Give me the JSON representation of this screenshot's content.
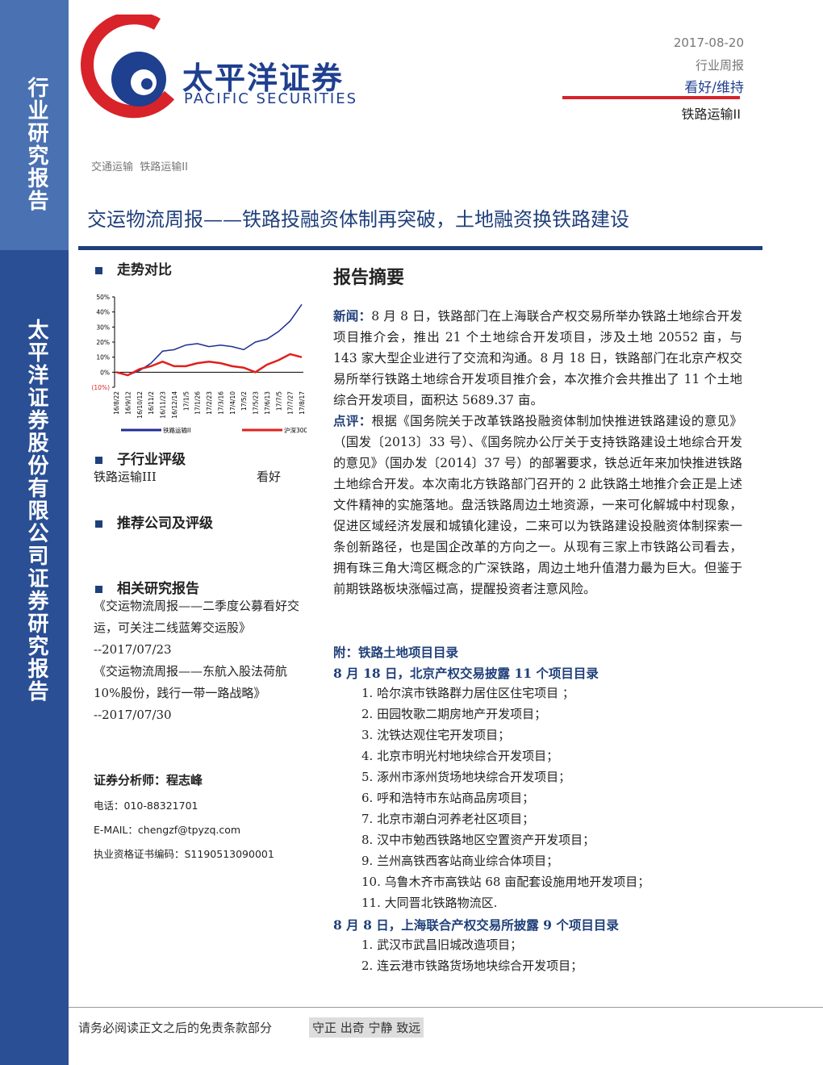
{
  "sidebar": {
    "top": "行业研究报告",
    "bottom": "太平洋证券股份有限公司证券研究报告"
  },
  "header": {
    "logo_cn": "太平洋证券",
    "logo_en": "PACIFIC SECURITIES",
    "date": "2017-08-20",
    "report_type": "行业周报",
    "rating": "看好/维持",
    "industry": "铁路运输II"
  },
  "breadcrumb": "交通运输  铁路运输II",
  "title": "交运物流周报——铁路投融资体制再突破，土地融资换铁路建设",
  "left": {
    "trend_heading": "走势对比",
    "sub_heading": "子行业评级",
    "sub_rating": {
      "industry": "铁路运输III",
      "rating": "看好"
    },
    "recommend_heading": "推荐公司及评级",
    "related_heading": "相关研究报告",
    "related": [
      {
        "title": "《交运物流周报——二季度公募看好交运，可关注二线蓝筹交运股》",
        "date": "--2017/07/23"
      },
      {
        "title": "《交运物流周报——东航入股法荷航 10%股份，践行一带一路战略》",
        "date": "--2017/07/30"
      }
    ],
    "analyst": {
      "label": "证券分析师：程志峰",
      "phone": "电话：010-88321701",
      "email": "E-MAIL：chengzf@tpyzq.com",
      "cert": "执业资格证书编码：S1190513090001"
    }
  },
  "summary": {
    "heading": "报告摘要",
    "news_label": "新闻：",
    "news": "8 月 8 日，铁路部门在上海联合产权交易所举办铁路土地综合开发项目推介会，推出 21 个土地综合开发项目，涉及土地 20552 亩，与 143 家大型企业进行了交流和沟通。8 月 18 日，铁路部门在北京产权交易所举行铁路土地综合开发项目推介会，本次推介会共推出了 11 个土地综合开发项目，面积达 5689.37 亩。",
    "comment_label": "点评：",
    "comment": "根据《国务院关于改革铁路投融资体制加快推进铁路建设的意见》（国发〔2013〕33 号）、《国务院办公厅关于支持铁路建设土地综合开发的意见》（国办发〔2014〕37 号）的部署要求，铁总近年来加快推进铁路土地综合开发。本次南北方铁路部门召开的 2 此铁路土地推介会正是上述文件精神的实施落地。盘活铁路周边土地资源，一来可化解城中村现象，促进区域经济发展和城镇化建设，二来可以为铁路建设投融资体制探索一条创新路径，也是国企改革的方向之一。从现有三家上市铁路公司看去，拥有珠三角大湾区概念的广深铁路，周边土地升值潜力最为巨大。但鉴于前期铁路板块涨幅过高，提醒投资者注意风险。",
    "appendix": "附：铁路土地项目目录",
    "list1_heading": "8 月 18 日，北京产权交易披露 11 个项目目录",
    "list1": [
      "1.  哈尔滨市铁路群力居住区住宅项目 ；",
      "2.  田园牧歌二期房地产开发项目；",
      "3.  沈铁达观住宅开发项目；",
      "4.  北京市明光村地块综合开发项目；",
      "5.  涿州市涿州货场地块综合开发项目；",
      "6.  呼和浩特市东站商品房项目；",
      "7.  北京市潮白河养老社区项目；",
      "8.  汉中市勉西铁路地区空置资产开发项目；",
      "9.  兰州高铁西客站商业综合体项目；",
      "10. 乌鲁木齐市高铁站 68 亩配套设施用地开发项目；",
      "11. 大同晋北铁路物流区."
    ],
    "list2_heading": "8 月 8 日，上海联合产权交易所披露 9 个项目目录",
    "list2": [
      "1.  武汉市武昌旧城改造项目；",
      "2.  连云港市铁路货场地块综合开发项目；"
    ]
  },
  "footer": {
    "disclaimer": "请务必阅读正文之后的免责条款部分",
    "motto": "守正 出奇 宁静 致远"
  },
  "chart_data": {
    "type": "line",
    "categories": [
      "16/8/22",
      "16/9/12",
      "16/10/12",
      "16/11/2",
      "16/11/23",
      "16/12/14",
      "17/1/5",
      "17/1/26",
      "17/2/23",
      "17/3/16",
      "17/4/10",
      "17/5/2",
      "17/5/23",
      "17/6/13",
      "17/7/5",
      "17/7/27",
      "17/8/17"
    ],
    "series": [
      {
        "name": "铁路运输II",
        "color": "#1f2f8f",
        "values": [
          0,
          -2,
          1,
          6,
          14,
          15,
          18,
          19,
          17,
          18,
          17,
          15,
          20,
          22,
          27,
          34,
          45
        ]
      },
      {
        "name": "沪深300",
        "color": "#e0201c",
        "values": [
          0,
          -2,
          2,
          4,
          7,
          4,
          4,
          6,
          7,
          6,
          4,
          3,
          0,
          5,
          8,
          12,
          10
        ]
      }
    ],
    "ylim": [
      -10,
      50
    ],
    "yticks": [
      {
        "value": -10,
        "label": "(10%)"
      },
      {
        "value": 0,
        "label": "0%"
      },
      {
        "value": 10,
        "label": "10%"
      },
      {
        "value": 20,
        "label": "20%"
      },
      {
        "value": 30,
        "label": "30%"
      },
      {
        "value": 40,
        "label": "40%"
      },
      {
        "value": 50,
        "label": "50%"
      }
    ]
  }
}
